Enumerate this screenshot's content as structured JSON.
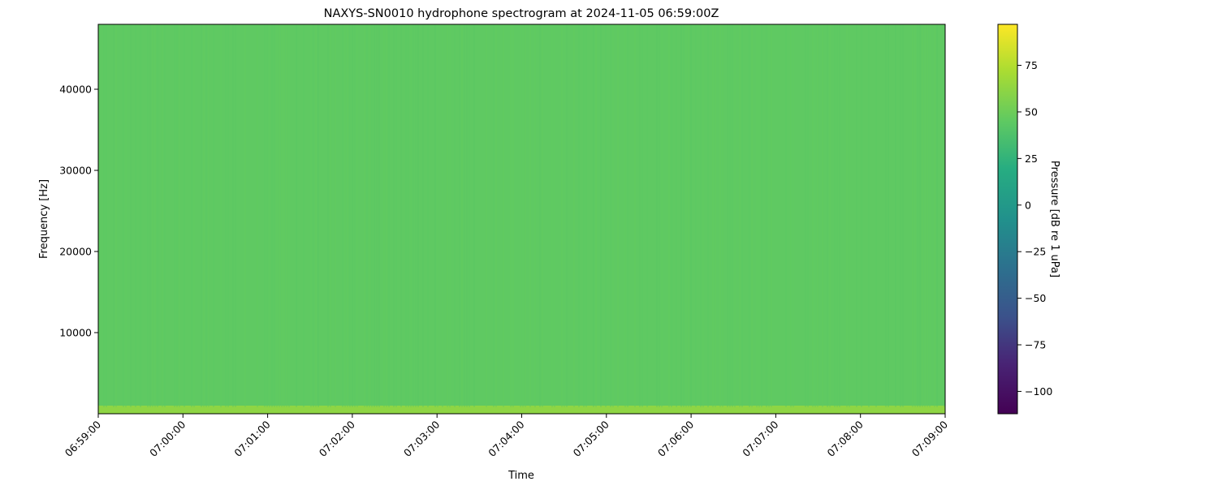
{
  "chart_data": {
    "type": "heatmap",
    "title": "NAXYS-SN0010 hydrophone spectrogram at 2024-11-05 06:59:00Z",
    "xlabel": "Time",
    "ylabel": "Frequency [Hz]",
    "x_ticks": [
      "06:59:00",
      "07:00:00",
      "07:01:00",
      "07:02:00",
      "07:03:00",
      "07:04:00",
      "07:05:00",
      "07:06:00",
      "07:07:00",
      "07:08:00",
      "07:09:00"
    ],
    "xlim": [
      "06:59:00",
      "07:09:00"
    ],
    "y_ticks": [
      10000,
      20000,
      30000,
      40000
    ],
    "ylim": [
      0,
      48000
    ],
    "colormap": "viridis",
    "colorbar": {
      "label": "Pressure [dB re 1 uPa]",
      "ticks": [
        75,
        50,
        25,
        0,
        -25,
        -50,
        -75,
        -100
      ],
      "range": [
        -112,
        97
      ]
    },
    "bands": [
      {
        "freq_range": [
          0,
          1000
        ],
        "level_db": 62
      },
      {
        "freq_range": [
          1000,
          48000
        ],
        "level_db": 45
      }
    ]
  }
}
